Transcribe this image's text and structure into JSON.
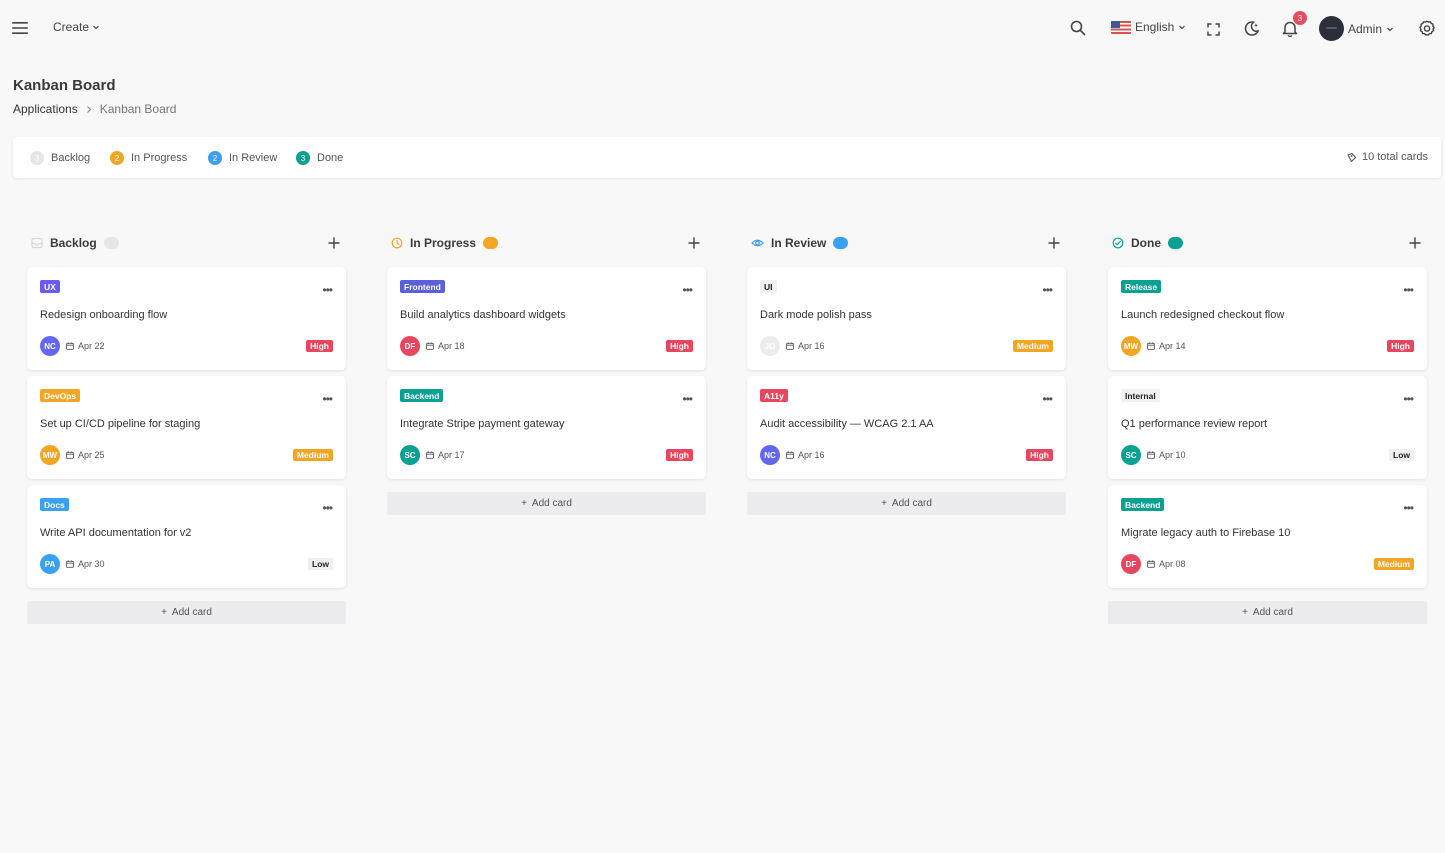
{
  "header": {
    "create_label": "Create",
    "language_label": "English",
    "notifications_count": "3",
    "user_name": "Admin"
  },
  "page": {
    "title": "Kanban Board",
    "breadcrumb": {
      "parent": "Applications",
      "current": "Kanban Board"
    }
  },
  "summary": {
    "items": [
      {
        "label": "Backlog",
        "count": "3",
        "color": "#e6e6e8"
      },
      {
        "label": "In Progress",
        "count": "2",
        "color": "#f5a524"
      },
      {
        "label": "In Review",
        "count": "2",
        "color": "#3aa0f0"
      },
      {
        "label": "Done",
        "count": "3",
        "color": "#0aa192"
      }
    ],
    "total_label": "10 total cards"
  },
  "colors": {
    "high": "#e8455f",
    "medium": "#f5a524",
    "low_bg": "#efefef",
    "ux": "#6a5cf0",
    "frontend": "#5b5fdc",
    "devops": "#f5a524",
    "docs": "#3aa0f0",
    "backend": "#0aa192",
    "release": "#0aa192",
    "a11y": "#e8455f"
  },
  "columns": [
    {
      "title": "Backlog",
      "icon": "inbox-icon",
      "pill_color": "#e6e6e8",
      "add_card_label": "Add card",
      "cards": [
        {
          "tag": "UX",
          "tag_bg": "#6a5cf0",
          "tag_fg": "#ffffff",
          "title": "Redesign onboarding flow",
          "avatar": "NC",
          "avatar_bg": "#6366f1",
          "date": "Apr 22",
          "priority": "High",
          "priority_bg": "#e8455f",
          "priority_fg": "#ffffff"
        },
        {
          "tag": "DevOps",
          "tag_bg": "#f5a524",
          "tag_fg": "#ffffff",
          "title": "Set up CI/CD pipeline for staging",
          "avatar": "MW",
          "avatar_bg": "#f5a524",
          "date": "Apr 25",
          "priority": "Medium",
          "priority_bg": "#f5a524",
          "priority_fg": "#ffffff"
        },
        {
          "tag": "Docs",
          "tag_bg": "#3aa0f0",
          "tag_fg": "#ffffff",
          "title": "Write API documentation for v2",
          "avatar": "PA",
          "avatar_bg": "#3aa0f0",
          "date": "Apr 30",
          "priority": "Low",
          "priority_bg": "#efefef",
          "priority_fg": "#222222"
        }
      ]
    },
    {
      "title": "In Progress",
      "icon": "clock-icon",
      "pill_color": "#f5a524",
      "add_card_label": "Add card",
      "cards": [
        {
          "tag": "Frontend",
          "tag_bg": "#5b5fdc",
          "tag_fg": "#ffffff",
          "title": "Build analytics dashboard widgets",
          "avatar": "DF",
          "avatar_bg": "#e8455f",
          "date": "Apr 18",
          "priority": "High",
          "priority_bg": "#e8455f",
          "priority_fg": "#ffffff"
        },
        {
          "tag": "Backend",
          "tag_bg": "#0aa192",
          "tag_fg": "#ffffff",
          "title": "Integrate Stripe payment gateway",
          "avatar": "SC",
          "avatar_bg": "#0aa192",
          "date": "Apr 17",
          "priority": "High",
          "priority_bg": "#e8455f",
          "priority_fg": "#ffffff"
        }
      ]
    },
    {
      "title": "In Review",
      "icon": "eye-icon",
      "pill_color": "#3aa0f0",
      "add_card_label": "Add card",
      "cards": [
        {
          "tag": "UI",
          "tag_bg": "#f1f1f3",
          "tag_fg": "#222222",
          "title": "Dark mode polish pass",
          "avatar": "JO",
          "avatar_bg": "#ececee",
          "date": "Apr 16",
          "priority": "Medium",
          "priority_bg": "#f5a524",
          "priority_fg": "#ffffff"
        },
        {
          "tag": "A11y",
          "tag_bg": "#e8455f",
          "tag_fg": "#ffffff",
          "title": "Audit accessibility — WCAG 2.1 AA",
          "avatar": "NC",
          "avatar_bg": "#6366f1",
          "date": "Apr 16",
          "priority": "High",
          "priority_bg": "#e8455f",
          "priority_fg": "#ffffff"
        }
      ]
    },
    {
      "title": "Done",
      "icon": "check-circle-icon",
      "pill_color": "#0aa192",
      "add_card_label": "Add card",
      "cards": [
        {
          "tag": "Release",
          "tag_bg": "#0aa192",
          "tag_fg": "#ffffff",
          "title": "Launch redesigned checkout flow",
          "avatar": "MW",
          "avatar_bg": "#f5a524",
          "date": "Apr 14",
          "priority": "High",
          "priority_bg": "#e8455f",
          "priority_fg": "#ffffff"
        },
        {
          "tag": "Internal",
          "tag_bg": "#f1f1f3",
          "tag_fg": "#222222",
          "title": "Q1 performance review report",
          "avatar": "SC",
          "avatar_bg": "#0aa192",
          "date": "Apr 10",
          "priority": "Low",
          "priority_bg": "#efefef",
          "priority_fg": "#222222"
        },
        {
          "tag": "Backend",
          "tag_bg": "#0aa192",
          "tag_fg": "#ffffff",
          "title": "Migrate legacy auth to Firebase 10",
          "avatar": "DF",
          "avatar_bg": "#e8455f",
          "date": "Apr 08",
          "priority": "Medium",
          "priority_bg": "#f5a524",
          "priority_fg": "#ffffff"
        }
      ]
    }
  ]
}
